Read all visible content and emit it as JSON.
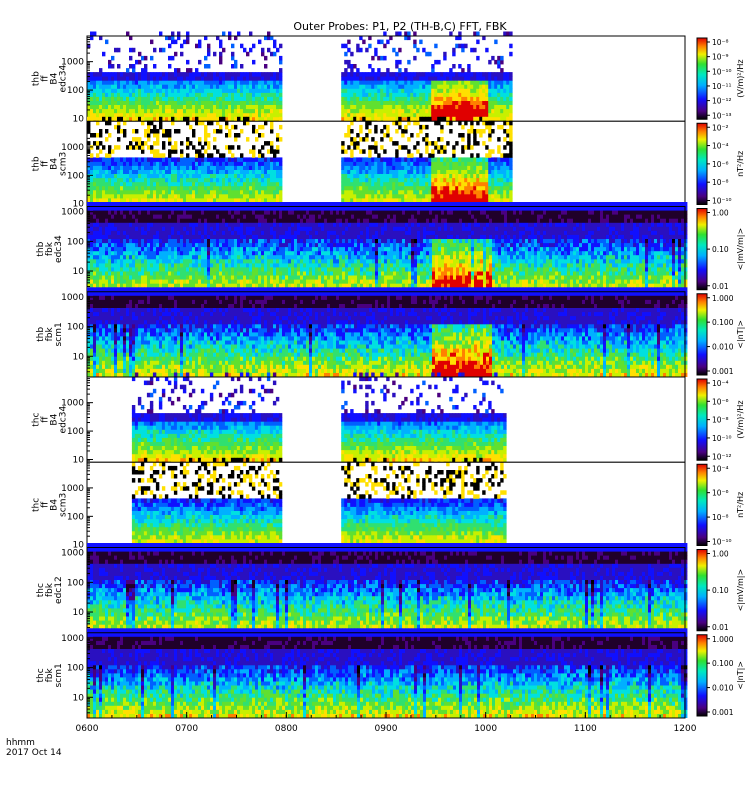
{
  "chart_data": {
    "type": "heatmap",
    "title": "Outer Probes: P1, P2 (TH-B,C) FFT, FBK",
    "x_label": [
      "hhmm",
      "2017 Oct 14"
    ],
    "x_ticks": [
      "0600",
      "0700",
      "0800",
      "0900",
      "1000",
      "1100",
      "1200"
    ],
    "x_range_hours": [
      6,
      12
    ],
    "colormap": "rainbow (purple-blue-cyan-green-yellow-red)",
    "grid": false,
    "panels": [
      {
        "id": "thb-ff-b4-edc34",
        "label": [
          "thb",
          "ff",
          "B4",
          "edc34"
        ],
        "y_scale": "log",
        "y_ticks": [
          "1000",
          "100",
          "10"
        ],
        "y_range": [
          8,
          8000
        ],
        "data_intervals_hours": [
          [
            6.0,
            7.95
          ],
          [
            8.55,
            10.25
          ]
        ],
        "enhanced_interval_hours": [
          9.45,
          10.0
        ],
        "colorbar_label": "(V/m)²/Hz",
        "colorbar_ticks": [
          "10⁻⁸",
          "10⁻⁹",
          "10⁻¹⁰",
          "10⁻¹¹",
          "10⁻¹²",
          "10⁻¹³"
        ]
      },
      {
        "id": "thb-ff-b4-scm3",
        "label": [
          "thb",
          "ff",
          "B4",
          "scm3"
        ],
        "y_scale": "log",
        "y_ticks": [
          "1000",
          "100",
          "10"
        ],
        "y_range": [
          8,
          8000
        ],
        "data_intervals_hours": [
          [
            6.0,
            7.95
          ],
          [
            8.55,
            10.25
          ]
        ],
        "enhanced_interval_hours": [
          9.45,
          10.0
        ],
        "colorbar_label": "nT²/Hz",
        "colorbar_ticks": [
          "10⁻²",
          "10⁻⁴",
          "10⁻⁶",
          "10⁻⁸",
          "10⁻¹⁰"
        ]
      },
      {
        "id": "thb-fbk-edc34",
        "label": [
          "thb",
          "fbk",
          "edc34"
        ],
        "y_scale": "log",
        "y_ticks": [
          "1000",
          "100",
          "10"
        ],
        "y_range": [
          2,
          1500
        ],
        "data_intervals_hours": [
          [
            6.0,
            12.0
          ]
        ],
        "enhanced_interval_hours": [
          9.45,
          10.05
        ],
        "colorbar_label": "<|mV/m|>",
        "colorbar_ticks": [
          "1.00",
          "0.10",
          "0.01"
        ]
      },
      {
        "id": "thb-fbk-scm1",
        "label": [
          "thb",
          "fbk",
          "scm1"
        ],
        "y_scale": "log",
        "y_ticks": [
          "1000",
          "100",
          "10"
        ],
        "y_range": [
          2,
          1500
        ],
        "data_intervals_hours": [
          [
            6.0,
            12.0
          ]
        ],
        "enhanced_interval_hours": [
          9.45,
          10.05
        ],
        "colorbar_label": "<|nT|>",
        "colorbar_ticks": [
          "1.000",
          "0.100",
          "0.010",
          "0.001"
        ]
      },
      {
        "id": "thc-ff-b4-edc34",
        "label": [
          "thc",
          "ff",
          "B4",
          "edc34"
        ],
        "y_scale": "log",
        "y_ticks": [
          "1000",
          "100",
          "10"
        ],
        "y_range": [
          8,
          8000
        ],
        "data_intervals_hours": [
          [
            6.45,
            7.95
          ],
          [
            8.55,
            10.2
          ]
        ],
        "enhanced_interval_hours": [],
        "colorbar_label": "(V/m)²/Hz",
        "colorbar_ticks": [
          "10⁻⁴",
          "10⁻⁶",
          "10⁻⁸",
          "10⁻¹⁰",
          "10⁻¹²"
        ]
      },
      {
        "id": "thc-ff-b4-scm3",
        "label": [
          "thc",
          "ff",
          "B4",
          "scm3"
        ],
        "y_scale": "log",
        "y_ticks": [
          "1000",
          "100",
          "10"
        ],
        "y_range": [
          8,
          8000
        ],
        "data_intervals_hours": [
          [
            6.45,
            7.95
          ],
          [
            8.55,
            10.2
          ]
        ],
        "enhanced_interval_hours": [],
        "colorbar_label": "nT²/Hz",
        "colorbar_ticks": [
          "10⁻⁴",
          "10⁻⁶",
          "10⁻⁸",
          "10⁻¹⁰"
        ]
      },
      {
        "id": "thc-fbk-edc12",
        "label": [
          "thc",
          "fbk",
          "edc12"
        ],
        "y_scale": "log",
        "y_ticks": [
          "1000",
          "100",
          "10"
        ],
        "y_range": [
          2,
          1500
        ],
        "data_intervals_hours": [
          [
            6.0,
            12.0
          ]
        ],
        "enhanced_interval_hours": [],
        "colorbar_label": "<|mV/m|>",
        "colorbar_ticks": [
          "1.00",
          "0.10",
          "0.01"
        ]
      },
      {
        "id": "thc-fbk-scm1",
        "label": [
          "thc",
          "fbk",
          "scm1"
        ],
        "y_scale": "log",
        "y_ticks": [
          "1000",
          "100",
          "10"
        ],
        "y_range": [
          2,
          1500
        ],
        "data_intervals_hours": [
          [
            6.0,
            12.0
          ]
        ],
        "enhanced_interval_hours": [],
        "colorbar_label": "<|nT|>",
        "colorbar_ticks": [
          "1.000",
          "0.100",
          "0.010",
          "0.001"
        ]
      }
    ]
  }
}
